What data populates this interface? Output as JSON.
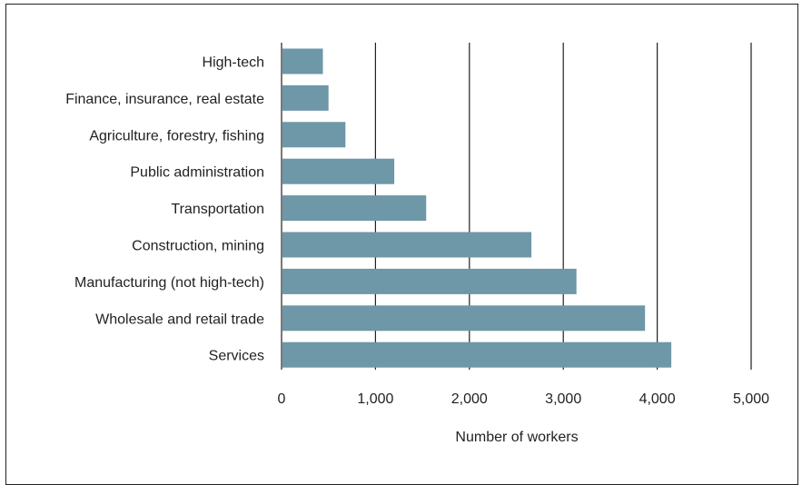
{
  "chart_data": {
    "type": "bar",
    "orientation": "horizontal",
    "categories": [
      "High-tech",
      "Finance, insurance, real estate",
      "Agriculture, forestry, fishing",
      "Public administration",
      "Transportation",
      "Construction, mining",
      "Manufacturing (not high-tech)",
      "Wholesale and retail trade",
      "Services"
    ],
    "values": [
      440,
      500,
      680,
      1200,
      1540,
      2660,
      3140,
      3870,
      4150
    ],
    "xlabel": "Number of workers",
    "xlim": [
      0,
      5000
    ],
    "xticks": [
      0,
      1000,
      2000,
      3000,
      4000,
      5000
    ],
    "xtick_labels": [
      "0",
      "1,000",
      "2,000",
      "3,000",
      "4,000",
      "5,000"
    ],
    "grid": "vertical",
    "bar_color": "#6e97a8",
    "text_color": "#231f20"
  }
}
